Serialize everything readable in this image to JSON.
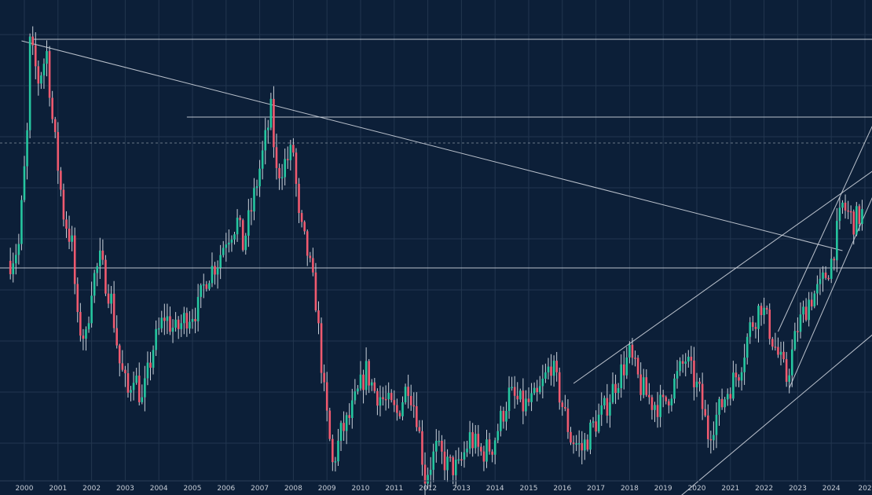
{
  "chart_data": {
    "type": "candlestick",
    "title": "",
    "xlabel": "",
    "ylabel": "",
    "interval": "monthly",
    "x_tick_labels": [
      "2000",
      "2001",
      "2002",
      "2003",
      "2004",
      "2005",
      "2006",
      "2007",
      "2008",
      "2009",
      "2010",
      "2011",
      "2012",
      "2013",
      "2014",
      "2015",
      "2016",
      "2017",
      "2018",
      "2019",
      "2020",
      "2021",
      "2022",
      "2023",
      "2024",
      "202"
    ],
    "grid": true,
    "colors": {
      "background": "#0c1f38",
      "up": "#26c6a0",
      "down": "#ef5a6f",
      "wick": "#c9d1da",
      "grid": "#22364f",
      "drawing": "#d9dee6",
      "text": "#c7cdd6"
    },
    "price_path": [
      [
        "1999-08",
        280
      ],
      [
        "1999-11",
        300
      ],
      [
        "2000-02",
        440
      ],
      [
        "2000-03",
        555
      ],
      [
        "2000-06",
        510
      ],
      [
        "2000-09",
        545
      ],
      [
        "2000-11",
        460
      ],
      [
        "2001-03",
        340
      ],
      [
        "2001-06",
        300
      ],
      [
        "2001-08",
        200
      ],
      [
        "2001-11",
        180
      ],
      [
        "2002-01",
        250
      ],
      [
        "2002-04",
        280
      ],
      [
        "2002-08",
        230
      ],
      [
        "2002-11",
        150
      ],
      [
        "2003-02",
        110
      ],
      [
        "2003-04",
        140
      ],
      [
        "2003-07",
        100
      ],
      [
        "2003-11",
        170
      ],
      [
        "2004-03",
        210
      ],
      [
        "2004-07",
        190
      ],
      [
        "2004-11",
        210
      ],
      [
        "2005-03",
        220
      ],
      [
        "2005-06",
        260
      ],
      [
        "2005-10",
        280
      ],
      [
        "2006-01",
        310
      ],
      [
        "2006-05",
        330
      ],
      [
        "2006-07",
        300
      ],
      [
        "2006-10",
        345
      ],
      [
        "2007-02",
        415
      ],
      [
        "2007-05",
        470
      ],
      [
        "2007-07",
        390
      ],
      [
        "2007-10",
        405
      ],
      [
        "2008-01",
        420
      ],
      [
        "2008-03",
        330
      ],
      [
        "2008-06",
        290
      ],
      [
        "2008-09",
        230
      ],
      [
        "2008-12",
        110
      ],
      [
        "2009-03",
        20
      ],
      [
        "2009-06",
        60
      ],
      [
        "2009-09",
        80
      ],
      [
        "2009-12",
        110
      ],
      [
        "2010-03",
        140
      ],
      [
        "2010-06",
        115
      ],
      [
        "2010-10",
        100
      ],
      [
        "2011-02",
        85
      ],
      [
        "2011-06",
        125
      ],
      [
        "2011-09",
        85
      ],
      [
        "2011-12",
        5
      ],
      [
        "2012-04",
        40
      ],
      [
        "2012-08",
        20
      ],
      [
        "2012-12",
        15
      ],
      [
        "2013-04",
        55
      ],
      [
        "2013-08",
        35
      ],
      [
        "2013-12",
        45
      ],
      [
        "2014-06",
        110
      ],
      [
        "2014-11",
        95
      ],
      [
        "2015-04",
        105
      ],
      [
        "2015-09",
        150
      ],
      [
        "2015-12",
        110
      ],
      [
        "2016-04",
        55
      ],
      [
        "2016-08",
        40
      ],
      [
        "2016-12",
        70
      ],
      [
        "2017-04",
        90
      ],
      [
        "2017-08",
        125
      ],
      [
        "2018-01",
        160
      ],
      [
        "2018-05",
        120
      ],
      [
        "2018-09",
        100
      ],
      [
        "2019-01",
        95
      ],
      [
        "2019-05",
        125
      ],
      [
        "2019-09",
        155
      ],
      [
        "2020-02",
        110
      ],
      [
        "2020-05",
        60
      ],
      [
        "2020-09",
        90
      ],
      [
        "2020-12",
        115
      ],
      [
        "2021-04",
        140
      ],
      [
        "2021-08",
        195
      ],
      [
        "2021-12",
        225
      ],
      [
        "2022-05",
        170
      ],
      [
        "2022-09",
        130
      ],
      [
        "2023-01",
        195
      ],
      [
        "2023-05",
        230
      ],
      [
        "2023-09",
        245
      ],
      [
        "2024-01",
        280
      ],
      [
        "2024-05",
        350
      ],
      [
        "2024-09",
        330
      ],
      [
        "2024-12",
        340
      ]
    ],
    "drawings": [
      {
        "kind": "trend-line",
        "from": [
          "1999-12",
          560
        ],
        "to": [
          "2024-05",
          293
        ]
      },
      {
        "kind": "horizontal-ray",
        "from": [
          "2000-04",
          562
        ]
      },
      {
        "kind": "horizontal-ray",
        "from": [
          "2004-11",
          463
        ]
      },
      {
        "kind": "horizontal-line",
        "y": 271
      },
      {
        "kind": "dashed-level",
        "y": 430
      },
      {
        "kind": "trend-line",
        "from": [
          "2016-05",
          124
        ],
        "to": [
          "2025-06",
          400
        ]
      },
      {
        "kind": "trend-line",
        "from": [
          "2019-07",
          -20
        ],
        "to": [
          "2025-06",
          193
        ]
      },
      {
        "kind": "trend-line",
        "from": [
          "2022-06",
          190
        ],
        "to": [
          "2025-06",
          470
        ]
      },
      {
        "kind": "trend-line",
        "from": [
          "2022-10",
          118
        ],
        "to": [
          "2025-06",
          380
        ]
      }
    ]
  }
}
